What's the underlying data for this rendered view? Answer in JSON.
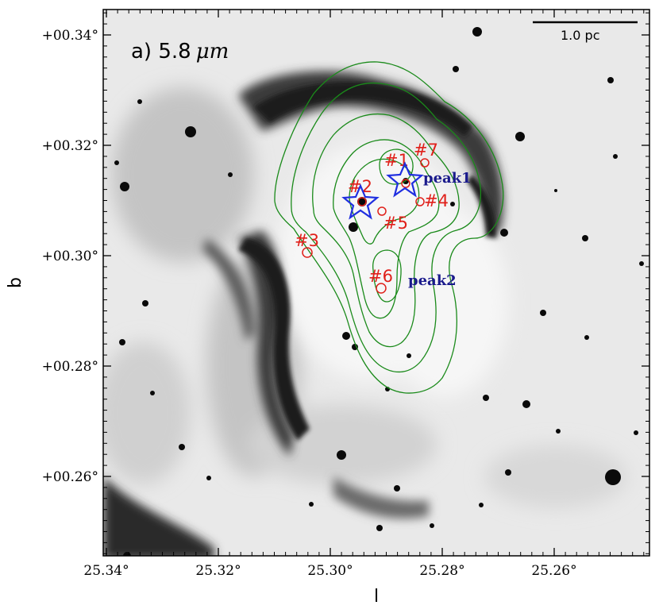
{
  "panel": {
    "label_prefix": "a) 5.8",
    "label_unit": "μm"
  },
  "axes": {
    "x_title": "l",
    "y_title": "b",
    "x_ticks": [
      "25.34°",
      "25.32°",
      "25.30°",
      "25.28°",
      "25.26°"
    ],
    "y_ticks": [
      "+00.34°",
      "+00.32°",
      "+00.30°",
      "+00.28°",
      "+00.26°"
    ]
  },
  "scale_bar": {
    "label": "1.0 pc"
  },
  "sources": [
    {
      "label": "#1"
    },
    {
      "label": "#2"
    },
    {
      "label": "#3"
    },
    {
      "label": "#4"
    },
    {
      "label": "#5"
    },
    {
      "label": "#6"
    },
    {
      "label": "#7"
    }
  ],
  "peaks": [
    {
      "label": "peak1"
    },
    {
      "label": "peak2"
    }
  ],
  "colors": {
    "contour": "#1a8a1a",
    "source_marker": "#e0201a",
    "peak_marker": "#1f2ee0",
    "peak_label": "#1a1a8c"
  }
}
